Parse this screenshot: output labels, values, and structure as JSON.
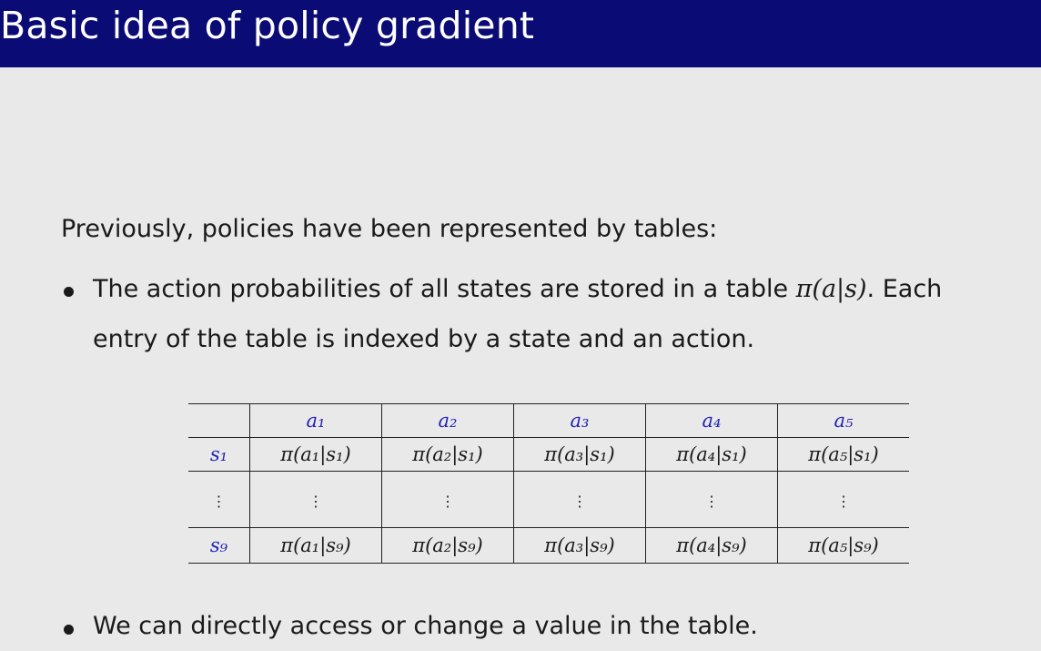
{
  "slide": {
    "title": "Basic idea of policy gradient",
    "intro": "Previously, policies have been represented by tables:",
    "bullets": [
      {
        "line1_pre": "The action probabilities of all states are stored in a table ",
        "line1_math": "π(a|s)",
        "line1_post": ". Each",
        "line2": "entry of the table is indexed by a state and an action."
      },
      {
        "text": "We can directly access or change a value in the table."
      }
    ]
  },
  "table": {
    "columns": [
      "a₁",
      "a₂",
      "a₃",
      "a₄",
      "a₅"
    ],
    "rows": [
      {
        "state": "s₁",
        "cells": [
          "π(a₁|s₁)",
          "π(a₂|s₁)",
          "π(a₃|s₁)",
          "π(a₄|s₁)",
          "π(a₅|s₁)"
        ]
      },
      {
        "state": "⋮",
        "cells": [
          "⋮",
          "⋮",
          "⋮",
          "⋮",
          "⋮"
        ]
      },
      {
        "state": "s₉",
        "cells": [
          "π(a₁|s₉)",
          "π(a₂|s₉)",
          "π(a₃|s₉)",
          "π(a₄|s₉)",
          "π(a₅|s₉)"
        ]
      }
    ]
  },
  "colors": {
    "title_bar": "#0b0b75",
    "background": "#e9e9e9",
    "header_label": "#2323b8"
  }
}
